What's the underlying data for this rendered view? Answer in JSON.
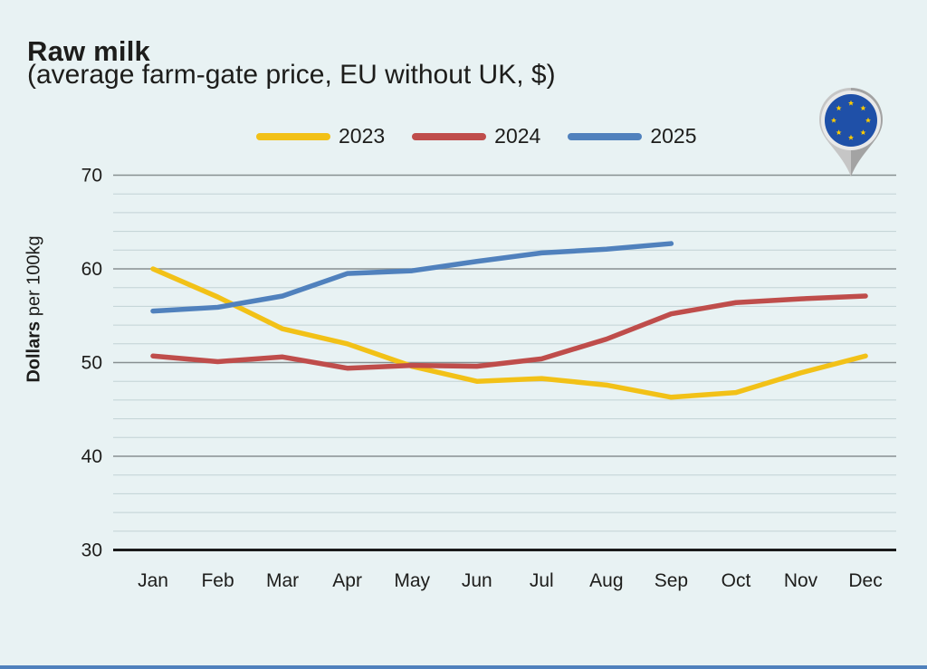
{
  "header": {
    "title": "Raw milk",
    "subtitle": "(average farm-gate price, EU without UK, $)"
  },
  "legend": {
    "items": [
      {
        "label": "2023",
        "color": "#F2C117"
      },
      {
        "label": "2024",
        "color": "#BF4D4B"
      },
      {
        "label": "2025",
        "color": "#5081BD"
      }
    ]
  },
  "icon": {
    "name": "eu-location-pin",
    "pin_color": "#A3A3A3",
    "pin_light": "#C6C6C6",
    "ring_color": "#E9E9E9",
    "flag_blue": "#1F50A8",
    "star_yellow": "#FFCC00"
  },
  "chart_data": {
    "type": "line",
    "title": "Raw milk",
    "subtitle": "(average farm-gate price, EU without UK, $)",
    "ylabel_bold": "Dollars",
    "ylabel_rest": " per 100kg",
    "xlabel": "",
    "categories": [
      "Jan",
      "Feb",
      "Mar",
      "Apr",
      "May",
      "Jun",
      "Jul",
      "Aug",
      "Sep",
      "Oct",
      "Nov",
      "Dec"
    ],
    "yticks": [
      70,
      60,
      50,
      40,
      30
    ],
    "ylim": [
      30,
      70
    ],
    "minor_grid_step": 2,
    "grid": true,
    "legend_position": "top",
    "series": [
      {
        "name": "2023",
        "color": "#F2C117",
        "values": [
          60.0,
          57.0,
          53.6,
          52.0,
          49.6,
          48.0,
          48.3,
          47.6,
          46.3,
          46.8,
          48.9,
          50.7
        ]
      },
      {
        "name": "2024",
        "color": "#BF4D4B",
        "values": [
          50.7,
          50.1,
          50.6,
          49.4,
          49.7,
          49.6,
          50.4,
          52.5,
          55.2,
          56.4,
          56.8,
          57.1
        ]
      },
      {
        "name": "2025",
        "color": "#5081BD",
        "values": [
          55.5,
          55.9,
          57.1,
          59.5,
          59.8,
          60.8,
          61.7,
          62.1,
          62.7
        ]
      }
    ]
  },
  "colors": {
    "background": "#E8F2F3",
    "text": "#1D1D1B",
    "axis": "#1A1A1A",
    "major_grid": "#878F91",
    "minor_grid": "#C2D2D5",
    "bottom_bar": "#4F81BD"
  }
}
